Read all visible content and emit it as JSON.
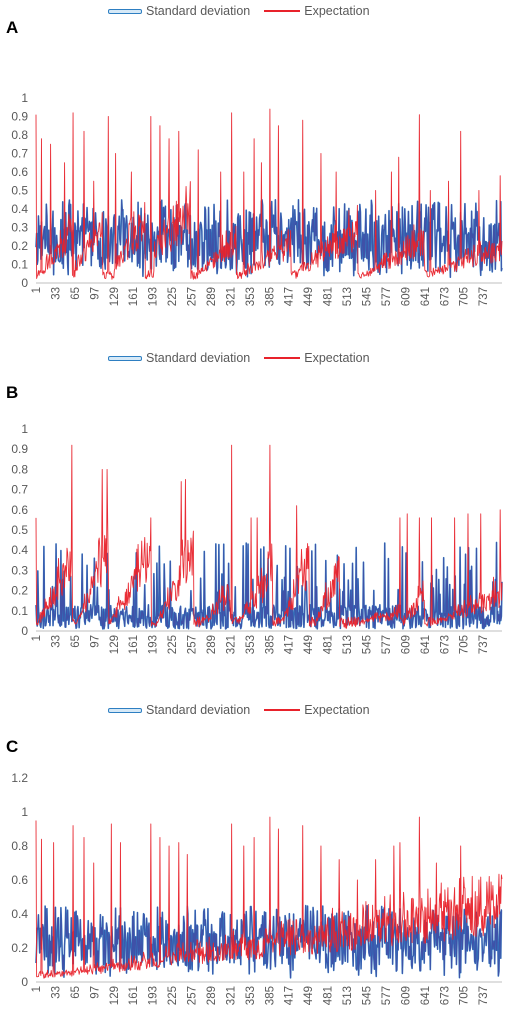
{
  "legend": {
    "sd_label": "Standard deviation",
    "ex_label": "Expectation"
  },
  "colors": {
    "expectation": "#e8222b",
    "std_fill": "#3f51a8",
    "std_edge": "#2e7fc2",
    "axis_text": "#595959"
  },
  "x_tick_labels": [
    "1",
    "33",
    "65",
    "97",
    "129",
    "161",
    "193",
    "225",
    "257",
    "289",
    "321",
    "353",
    "385",
    "417",
    "449",
    "481",
    "513",
    "545",
    "577",
    "609",
    "641",
    "673",
    "705",
    "737"
  ],
  "chart_data": [
    {
      "panel": "A",
      "type": "line",
      "n_points": 768,
      "xlim": [
        1,
        768
      ],
      "ylim": [
        0,
        1
      ],
      "y_ticks": [
        "0",
        "0.1",
        "0.2",
        "0.3",
        "0.4",
        "0.5",
        "0.6",
        "0.7",
        "0.8",
        "0.9",
        "1"
      ],
      "series_names": [
        "Standard deviation",
        "Expectation"
      ],
      "expectation_peaks": [
        [
          1,
          0.91
        ],
        [
          10,
          0.78
        ],
        [
          25,
          0.75
        ],
        [
          48,
          0.65
        ],
        [
          62,
          0.92
        ],
        [
          80,
          0.82
        ],
        [
          96,
          0.55
        ],
        [
          120,
          0.9
        ],
        [
          132,
          0.7
        ],
        [
          158,
          0.6
        ],
        [
          190,
          0.9
        ],
        [
          205,
          0.85
        ],
        [
          220,
          0.78
        ],
        [
          236,
          0.82
        ],
        [
          268,
          0.72
        ],
        [
          305,
          0.6
        ],
        [
          323,
          0.92
        ],
        [
          343,
          0.6
        ],
        [
          360,
          0.78
        ],
        [
          372,
          0.65
        ],
        [
          386,
          0.94
        ],
        [
          400,
          0.85
        ],
        [
          440,
          0.88
        ],
        [
          470,
          0.7
        ],
        [
          495,
          0.6
        ],
        [
          530,
          0.42
        ],
        [
          560,
          0.5
        ],
        [
          586,
          0.6
        ],
        [
          598,
          0.68
        ],
        [
          632,
          0.91
        ],
        [
          650,
          0.5
        ],
        [
          680,
          0.55
        ],
        [
          700,
          0.82
        ],
        [
          730,
          0.5
        ],
        [
          765,
          0.58
        ]
      ],
      "std_band_peak": 0.45,
      "expectation_baseline_ranges": [
        [
          1,
          60,
          0.02,
          0.3
        ],
        [
          66,
          110,
          0.1,
          0.3
        ],
        [
          130,
          180,
          0.1,
          0.35
        ],
        [
          196,
          255,
          0.2,
          0.38
        ],
        [
          270,
          330,
          0.05,
          0.25
        ],
        [
          340,
          420,
          0.05,
          0.22
        ],
        [
          430,
          530,
          0.05,
          0.3
        ],
        [
          540,
          640,
          0.03,
          0.25
        ],
        [
          650,
          768,
          0.05,
          0.2
        ]
      ]
    },
    {
      "panel": "B",
      "type": "line",
      "n_points": 768,
      "xlim": [
        1,
        768
      ],
      "ylim": [
        0,
        1
      ],
      "y_ticks": [
        "0",
        "0.1",
        "0.2",
        "0.3",
        "0.4",
        "0.5",
        "0.6",
        "0.7",
        "0.8",
        "0.9",
        "1"
      ],
      "series_names": [
        "Standard deviation",
        "Expectation"
      ],
      "expectation_peaks": [
        [
          1,
          0.56
        ],
        [
          60,
          0.92
        ],
        [
          110,
          0.8
        ],
        [
          118,
          0.8
        ],
        [
          190,
          0.56
        ],
        [
          240,
          0.74
        ],
        [
          247,
          0.75
        ],
        [
          323,
          0.92
        ],
        [
          355,
          0.56
        ],
        [
          365,
          0.56
        ],
        [
          386,
          0.92
        ],
        [
          430,
          0.62
        ],
        [
          600,
          0.56
        ],
        [
          612,
          0.58
        ],
        [
          632,
          0.56
        ],
        [
          652,
          0.56
        ],
        [
          690,
          0.56
        ],
        [
          712,
          0.58
        ],
        [
          733,
          0.58
        ],
        [
          765,
          0.6
        ]
      ],
      "std_band_peak": 0.44,
      "expectation_baseline_ranges": [
        [
          1,
          60,
          0.02,
          0.38
        ],
        [
          70,
          120,
          0.05,
          0.42
        ],
        [
          125,
          190,
          0.05,
          0.4
        ],
        [
          200,
          260,
          0.03,
          0.44
        ],
        [
          270,
          320,
          0.02,
          0.2
        ],
        [
          330,
          390,
          0.02,
          0.3
        ],
        [
          400,
          450,
          0.02,
          0.35
        ],
        [
          460,
          500,
          0.02,
          0.33
        ],
        [
          510,
          600,
          0.01,
          0.1
        ],
        [
          600,
          640,
          0.02,
          0.2
        ],
        [
          650,
          768,
          0.02,
          0.2
        ]
      ]
    },
    {
      "panel": "C",
      "type": "line",
      "n_points": 768,
      "xlim": [
        1,
        768
      ],
      "ylim": [
        0,
        1.2
      ],
      "y_ticks": [
        "0",
        "0.2",
        "0.4",
        "0.6",
        "0.8",
        "1",
        "1.2"
      ],
      "series_names": [
        "Standard deviation",
        "Expectation"
      ],
      "expectation_peaks": [
        [
          1,
          0.95
        ],
        [
          10,
          0.84
        ],
        [
          30,
          0.82
        ],
        [
          62,
          0.92
        ],
        [
          80,
          0.85
        ],
        [
          96,
          0.7
        ],
        [
          125,
          0.93
        ],
        [
          140,
          0.82
        ],
        [
          190,
          0.93
        ],
        [
          205,
          0.85
        ],
        [
          220,
          0.8
        ],
        [
          236,
          0.82
        ],
        [
          250,
          0.75
        ],
        [
          323,
          0.93
        ],
        [
          343,
          0.8
        ],
        [
          360,
          0.85
        ],
        [
          386,
          0.97
        ],
        [
          400,
          0.9
        ],
        [
          440,
          0.92
        ],
        [
          470,
          0.8
        ],
        [
          500,
          0.72
        ],
        [
          530,
          0.6
        ],
        [
          560,
          0.72
        ],
        [
          590,
          0.8
        ],
        [
          600,
          0.82
        ],
        [
          632,
          0.97
        ],
        [
          660,
          0.7
        ],
        [
          700,
          0.8
        ],
        [
          730,
          0.6
        ],
        [
          765,
          0.56
        ]
      ],
      "std_band_peak": 0.45,
      "expectation_baseline_ranges": [
        [
          1,
          768,
          0.02,
          0.45
        ]
      ]
    }
  ]
}
